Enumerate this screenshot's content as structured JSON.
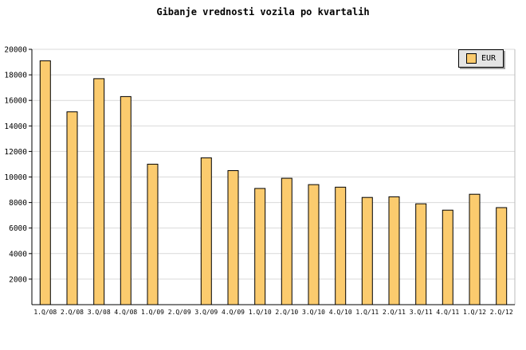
{
  "chart_data": {
    "type": "bar",
    "title": "Gibanje vrednosti vozila po kvartalih",
    "categories": [
      "1.Q/08",
      "2.Q/08",
      "3.Q/08",
      "4.Q/08",
      "1.Q/09",
      "2.Q/09",
      "3.Q/09",
      "4.Q/09",
      "1.Q/10",
      "2.Q/10",
      "3.Q/10",
      "4.Q/10",
      "1.Q/11",
      "2.Q/11",
      "3.Q/11",
      "4.Q/11",
      "1.Q/12",
      "2.Q/12"
    ],
    "series": [
      {
        "name": "EUR",
        "values": [
          19100,
          15100,
          17700,
          16300,
          11000,
          null,
          11500,
          10500,
          9100,
          9900,
          9400,
          9200,
          8400,
          8450,
          7900,
          7400,
          8650,
          7600
        ]
      }
    ],
    "xlabel": "",
    "ylabel": "",
    "ylim": [
      0,
      20000
    ],
    "ytick_step": 2000,
    "grid": "horizontal",
    "legend_position": "top-right"
  },
  "colors": {
    "bar": "#FBCB6E",
    "grid": "#D9D9D9",
    "axis": "#000000",
    "frame_light": "#BBBBBB",
    "legend_bg": "#E4E4E4",
    "text": "#000000",
    "background": "#FFFFFF"
  }
}
